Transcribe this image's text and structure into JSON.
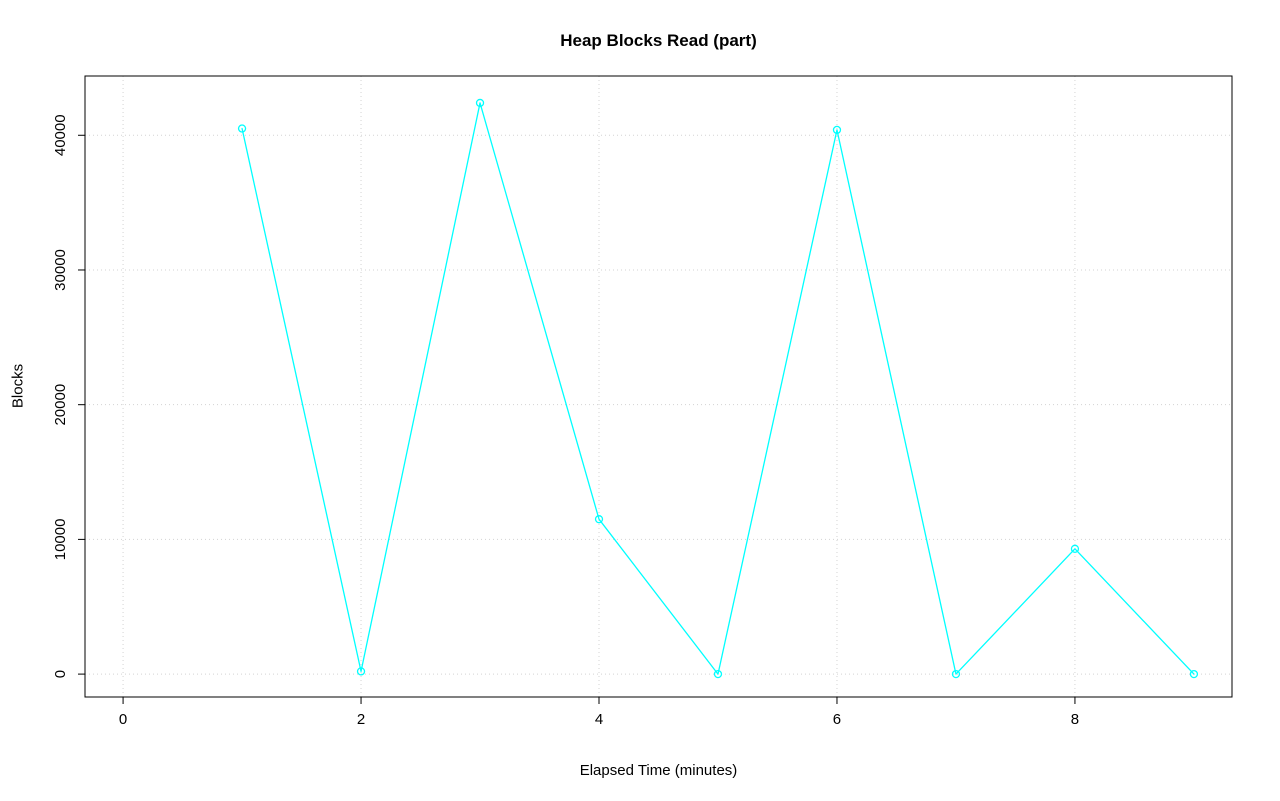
{
  "chart_data": {
    "type": "line",
    "title": "Heap Blocks Read (part)",
    "xlabel": "Elapsed Time (minutes)",
    "ylabel": "Blocks",
    "series": [
      {
        "name": "Heap Blocks Read",
        "x": [
          1,
          2,
          3,
          4,
          5,
          6,
          7,
          8,
          9
        ],
        "y": [
          40500,
          200,
          42400,
          11500,
          0,
          40400,
          0,
          9300,
          0
        ]
      }
    ],
    "xlim": [
      -0.32,
      9.32
    ],
    "ylim": [
      -1700,
      44400
    ],
    "x_ticks": [
      0,
      2,
      4,
      6,
      8
    ],
    "y_ticks": [
      0,
      10000,
      20000,
      30000,
      40000
    ],
    "grid": true,
    "grid_style": "dotted",
    "legend_position": "none",
    "marker": "open-circle",
    "colors": {
      "line": "#00ffff",
      "marker": "#00ffff",
      "grid": "#d3d3d3",
      "axis": "#000000",
      "background": "#ffffff"
    }
  }
}
